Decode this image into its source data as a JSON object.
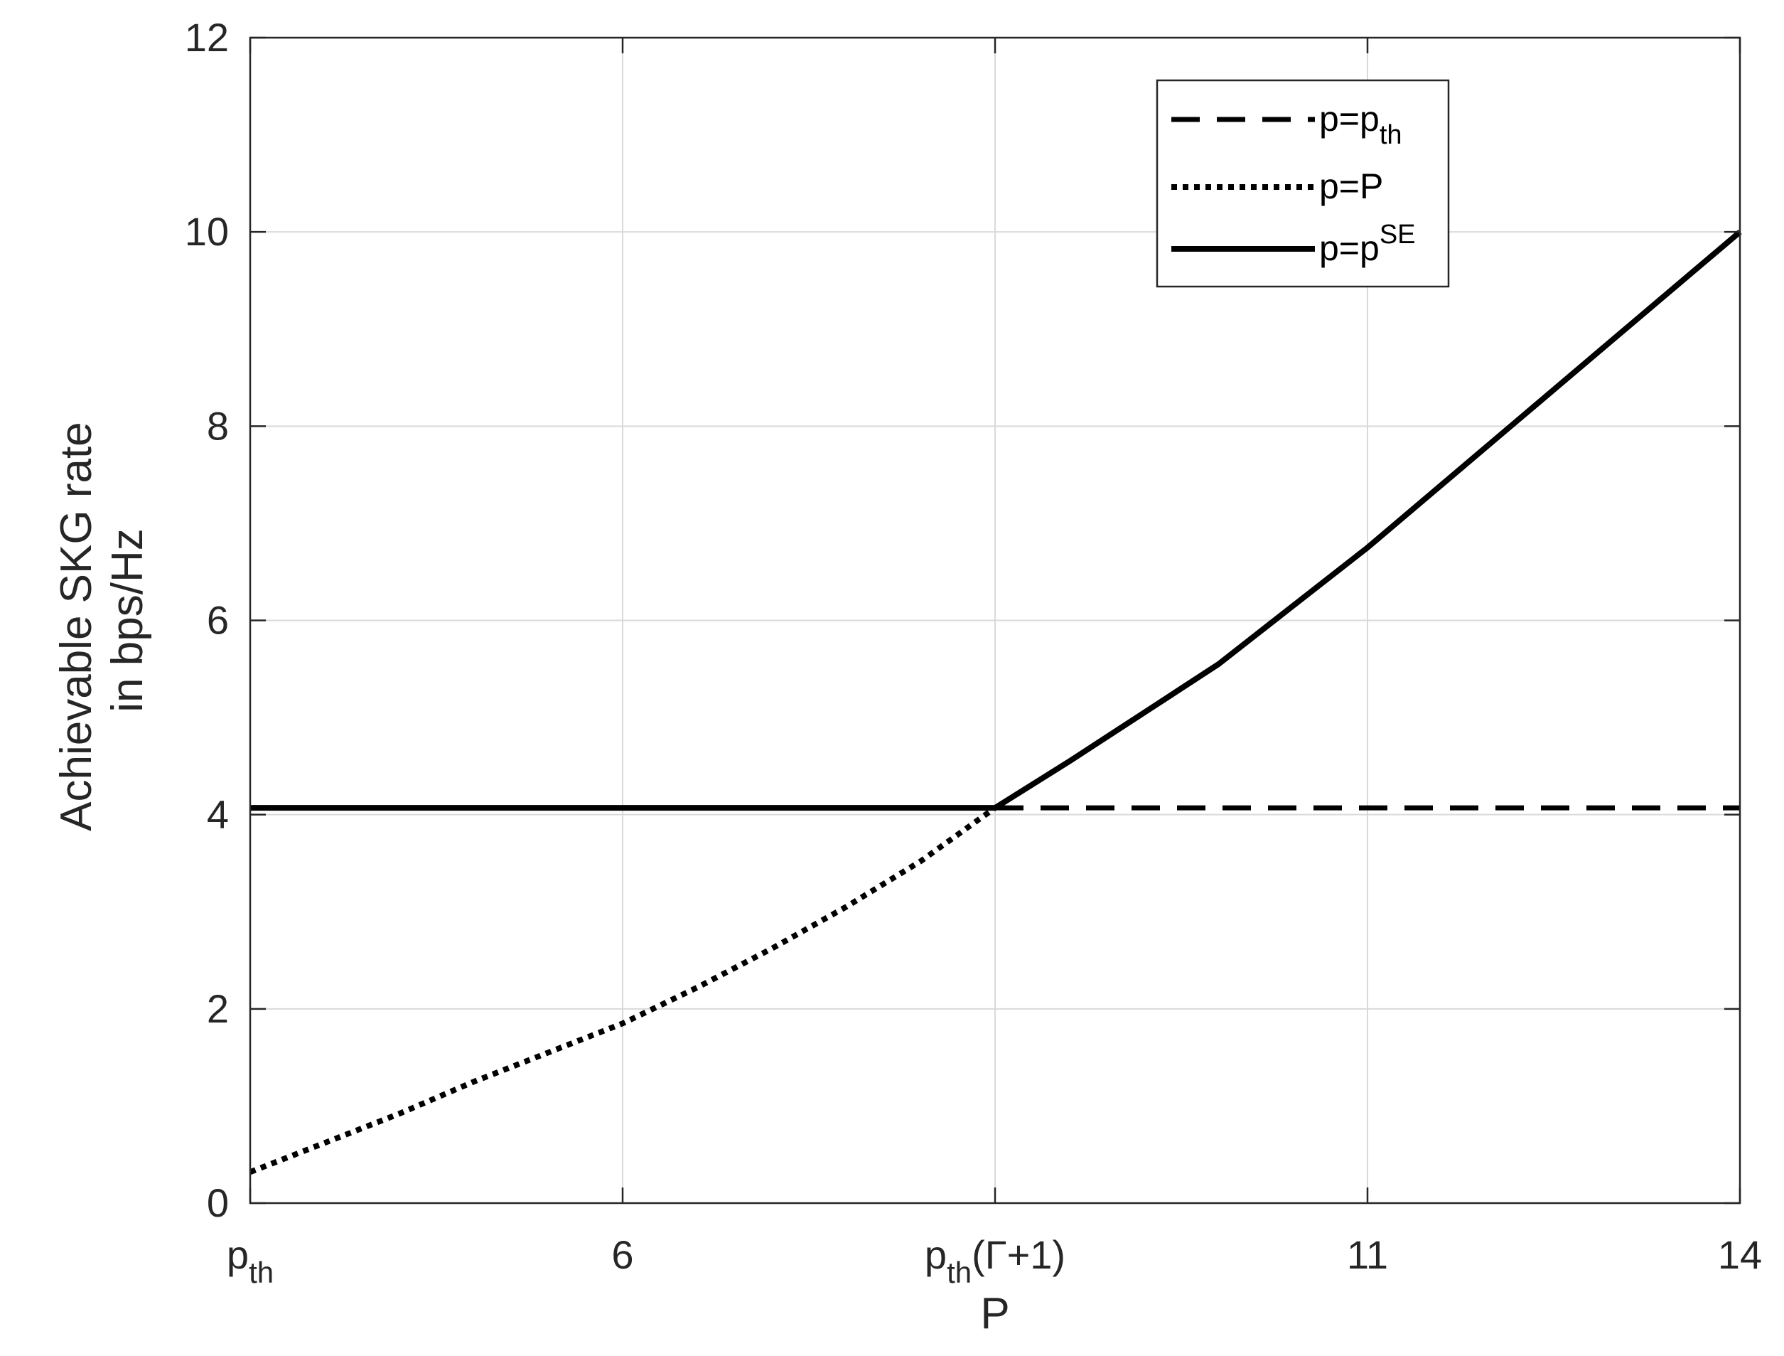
{
  "chart_data": {
    "type": "line",
    "xlabel": "P",
    "ylabel_lines": [
      "Achievable SKG rate",
      "in bps/Hz"
    ],
    "xlim": [
      4,
      14
    ],
    "ylim": [
      0,
      12
    ],
    "grid": true,
    "legend_placement": "top-right",
    "x_ticks": [
      {
        "value": 4,
        "base": "p",
        "sub": "th",
        "rest": ""
      },
      {
        "value": 6.5,
        "base": "6",
        "sub": "",
        "rest": ""
      },
      {
        "value": 9,
        "base": "p",
        "sub": "th",
        "rest": "(Γ+1)"
      },
      {
        "value": 11.5,
        "base": "11",
        "sub": "",
        "rest": ""
      },
      {
        "value": 14,
        "base": "14",
        "sub": "",
        "rest": ""
      }
    ],
    "y_ticks": [
      0,
      2,
      4,
      6,
      8,
      10,
      12
    ],
    "series": [
      {
        "name_base": "p=p",
        "name_sub": "th",
        "name_sup": "",
        "style": "dashed",
        "x": [
          9,
          14
        ],
        "y": [
          4.07,
          4.07
        ]
      },
      {
        "name_base": "p=P",
        "name_sub": "",
        "name_sup": "",
        "style": "dotted",
        "x": [
          4,
          4.5,
          5,
          5.5,
          6,
          6.5,
          7,
          7.5,
          8,
          8.5,
          9
        ],
        "y": [
          0.32,
          0.62,
          0.92,
          1.25,
          1.55,
          1.85,
          2.22,
          2.62,
          3.05,
          3.52,
          4.07
        ]
      },
      {
        "name_base": "p=p",
        "name_sub": "",
        "name_sup": "SE",
        "style": "solid",
        "x": [
          4,
          9,
          9.5,
          10,
          10.5,
          11,
          11.5,
          12,
          12.5,
          13,
          13.5,
          14
        ],
        "y": [
          4.07,
          4.07,
          4.55,
          5.05,
          5.55,
          6.15,
          6.75,
          7.4,
          8.05,
          8.7,
          9.35,
          10.0
        ]
      }
    ]
  },
  "colors": {
    "axis": "#262626",
    "grid": "#d9d9d9",
    "line": "#000000"
  }
}
